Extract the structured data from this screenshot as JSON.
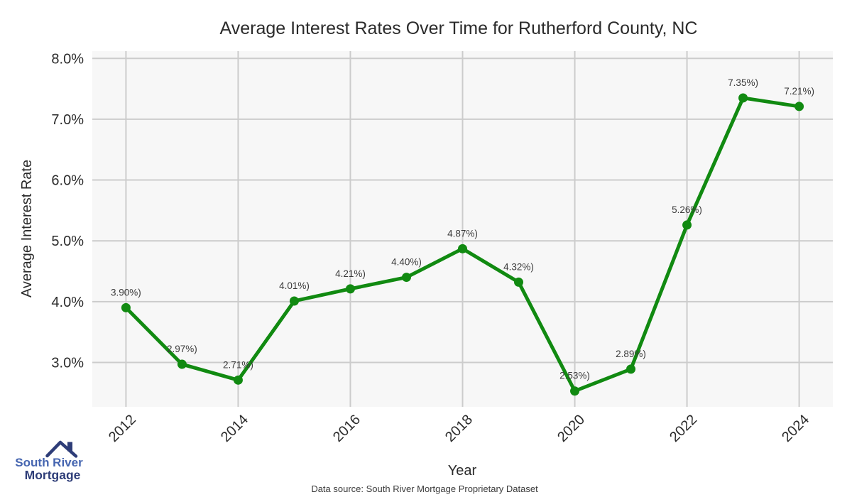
{
  "title": "Average Interest Rates Over Time for Rutherford County, NC",
  "chart_data": {
    "type": "line",
    "x": [
      2012,
      2013,
      2014,
      2015,
      2016,
      2017,
      2018,
      2019,
      2020,
      2021,
      2022,
      2023,
      2024
    ],
    "values": [
      3.9,
      2.97,
      2.71,
      4.01,
      4.21,
      4.4,
      4.87,
      4.32,
      2.53,
      2.89,
      5.26,
      7.35,
      7.21
    ],
    "point_labels": [
      "3.90%)",
      "2.97%)",
      "2.71%)",
      "4.01%)",
      "4.21%)",
      "4.40%)",
      "4.87%)",
      "4.32%)",
      "2.53%)",
      "2.89%)",
      "5.26%)",
      "7.35%)",
      "7.21%)"
    ],
    "xlabel": "Year",
    "ylabel": "Average Interest Rate",
    "x_ticks": [
      2012,
      2014,
      2016,
      2018,
      2020,
      2022,
      2024
    ],
    "y_ticks": [
      3,
      4,
      5,
      6,
      7,
      8
    ],
    "y_tick_labels": [
      "3.0%",
      "4.0%",
      "5.0%",
      "6.0%",
      "7.0%",
      "8.0%"
    ],
    "xlim": [
      2011.4,
      2024.6
    ],
    "ylim": [
      2.27,
      8.12
    ],
    "grid": true,
    "legend": "none",
    "line_color": "#118a11",
    "marker_color": "#118a11",
    "plot_bg": "#f7f7f7",
    "grid_color": "#cccccc"
  },
  "footer": {
    "source_note": "Data source: South River Mortgage Proprietary Dataset"
  },
  "logo": {
    "line1": "South River",
    "line2": "Mortgage",
    "color_primary": "#4565b0",
    "color_secondary": "#2e3d78"
  }
}
